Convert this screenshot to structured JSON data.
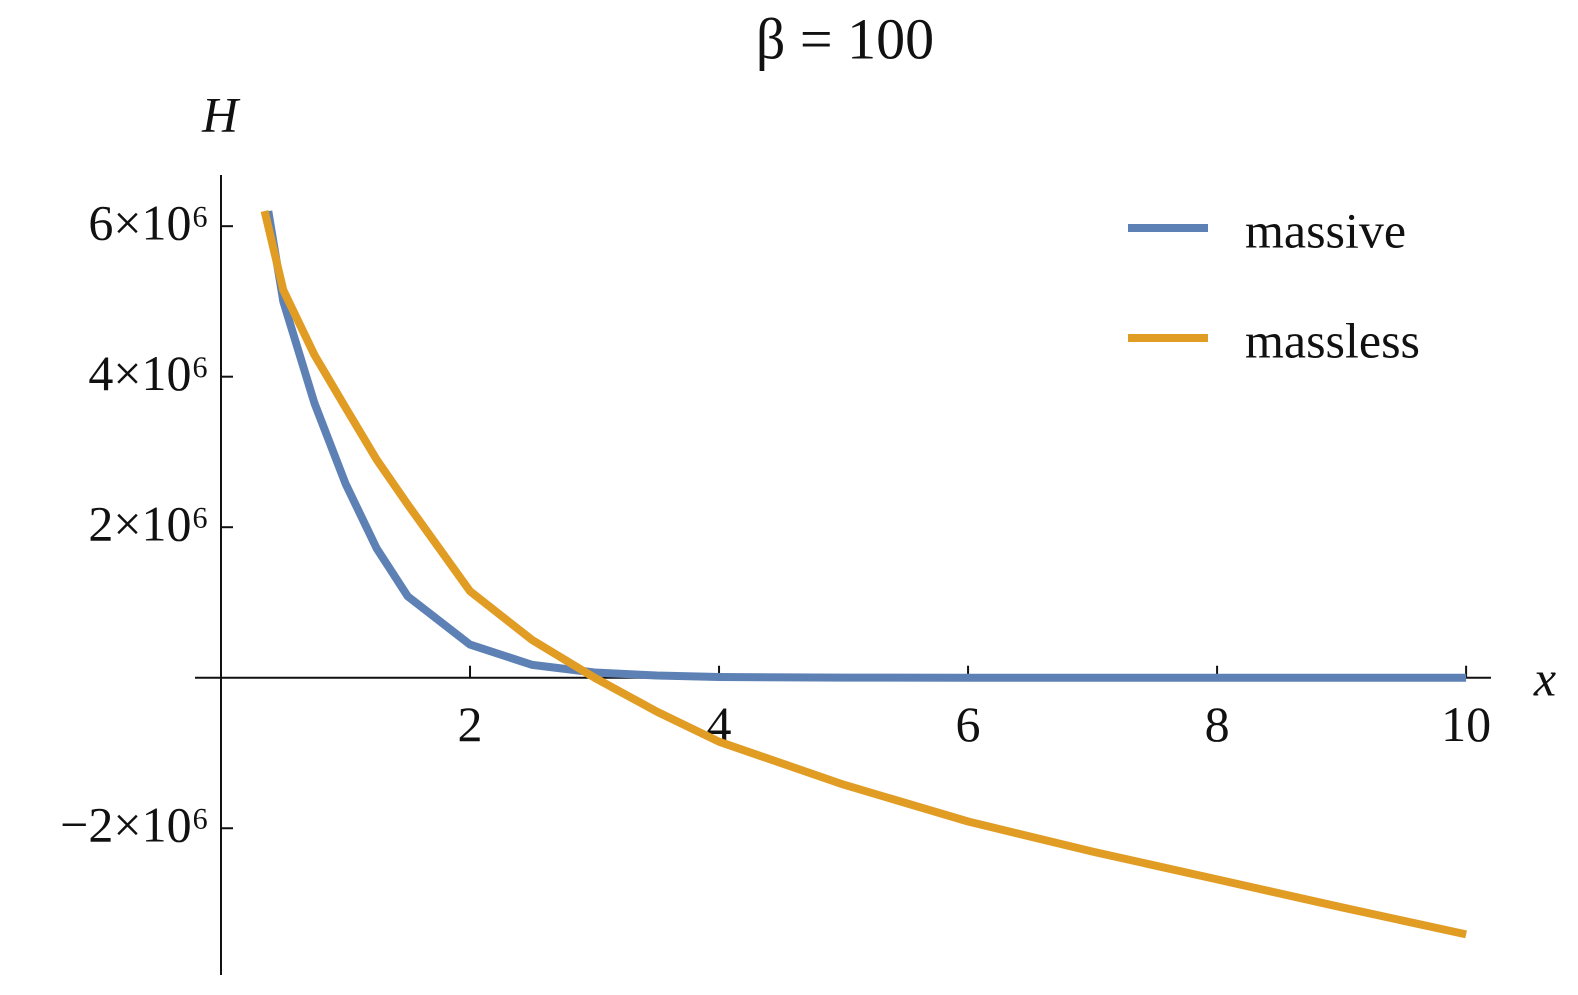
{
  "chart_data": {
    "type": "line",
    "title": "β = 100",
    "x_label": "x",
    "y_label": "H",
    "series": [
      {
        "name": "massive",
        "color": "#5e81b5",
        "x": [
          0.38,
          0.5,
          0.75,
          1,
          1.25,
          1.5,
          2,
          2.5,
          3,
          3.5,
          4,
          5,
          6,
          7,
          8,
          9,
          10
        ],
        "values": [
          6200000,
          5000000,
          3650000,
          2580000,
          1720000,
          1080000,
          440000,
          170000,
          70000,
          30000,
          10000,
          2000,
          0,
          0,
          0,
          0,
          0
        ]
      },
      {
        "name": "massless",
        "color": "#e19c24",
        "x": [
          0.35,
          0.5,
          0.75,
          1,
          1.25,
          1.5,
          2,
          2.5,
          3,
          3.5,
          4,
          5,
          6,
          7,
          8,
          9,
          10
        ],
        "values": [
          6200000,
          5150000,
          4290000,
          3590000,
          2900000,
          2300000,
          1150000,
          500000,
          0,
          -450000,
          -850000,
          -1420000,
          -1910000,
          -2310000,
          -2680000,
          -3050000,
          -3410000
        ]
      }
    ],
    "xlim": [
      0,
      10.2
    ],
    "ylim": [
      -3950000,
      6680000
    ],
    "xticks": [
      2,
      4,
      6,
      8,
      10
    ],
    "yticks": [
      {
        "value": -2000000,
        "label": "−2×10⁶"
      },
      {
        "value": 2000000,
        "label": "2×10⁶"
      },
      {
        "value": 4000000,
        "label": "4×10⁶"
      },
      {
        "value": 6000000,
        "label": "6×10⁶"
      }
    ],
    "legend": "top-right"
  }
}
